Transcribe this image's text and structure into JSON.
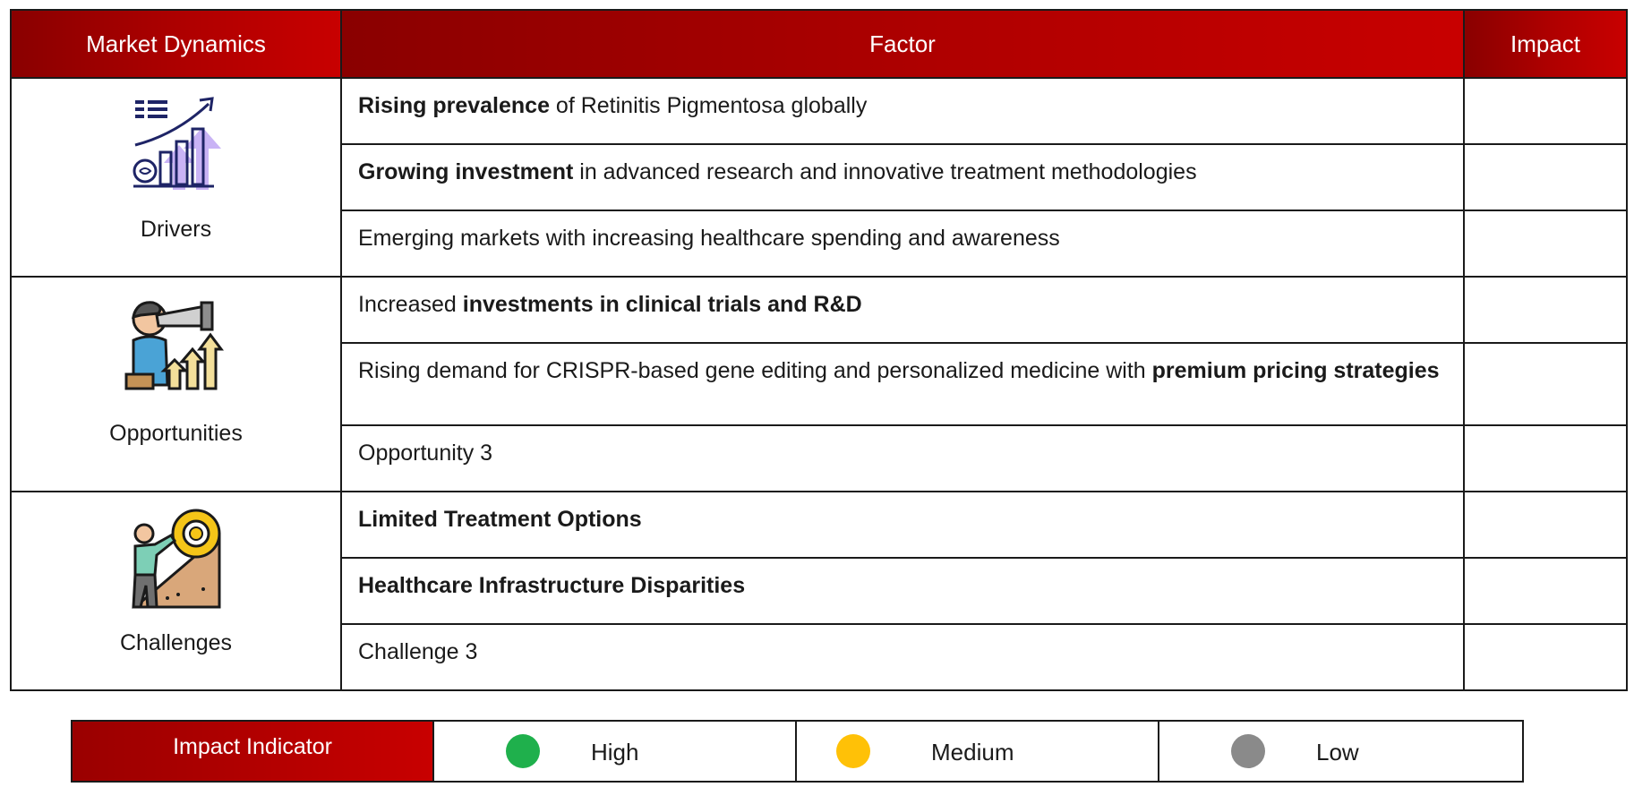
{
  "header": {
    "market_dynamics": "Market Dynamics",
    "factor": "Factor",
    "impact": "Impact"
  },
  "groups": [
    {
      "label": "Drivers",
      "icon": "growth-chart-icon",
      "rows": [
        {
          "parts": [
            {
              "text": "Rising prevalence",
              "bold": true
            },
            {
              "text": " of Retinitis Pigmentosa globally",
              "bold": false
            }
          ]
        },
        {
          "parts": [
            {
              "text": "Growing investment",
              "bold": true
            },
            {
              "text": " in advanced research and innovative treatment methodologies",
              "bold": false
            }
          ]
        },
        {
          "parts": [
            {
              "text": "Emerging markets with increasing healthcare spending and awareness",
              "bold": false
            }
          ]
        }
      ]
    },
    {
      "label": "Opportunities",
      "icon": "telescope-person-icon",
      "rows": [
        {
          "parts": [
            {
              "text": "Increased ",
              "bold": false
            },
            {
              "text": "investments in clinical trials and R&D",
              "bold": true
            }
          ]
        },
        {
          "parts": [
            {
              "text": "Rising demand for CRISPR-based gene editing and personalized medicine with ",
              "bold": false
            },
            {
              "text": "premium pricing strategies",
              "bold": true
            }
          ]
        },
        {
          "parts": [
            {
              "text": "Opportunity 3",
              "bold": false
            }
          ]
        }
      ]
    },
    {
      "label": "Challenges",
      "icon": "climbing-gear-icon",
      "rows": [
        {
          "parts": [
            {
              "text": "Limited Treatment Options",
              "bold": true
            }
          ]
        },
        {
          "parts": [
            {
              "text": "Healthcare Infrastructure Disparities",
              "bold": true
            }
          ]
        },
        {
          "parts": [
            {
              "text": "Challenge 3",
              "bold": false
            }
          ]
        }
      ]
    }
  ],
  "legend": {
    "title": "Impact Indicator",
    "items": [
      {
        "label": "High",
        "color": "#1fb04c"
      },
      {
        "label": "Medium",
        "color": "#ffc107"
      },
      {
        "label": "Low",
        "color": "#8a8a8a"
      }
    ]
  },
  "colors": {
    "header_red": "#b00000",
    "border": "#1a1a1a"
  }
}
